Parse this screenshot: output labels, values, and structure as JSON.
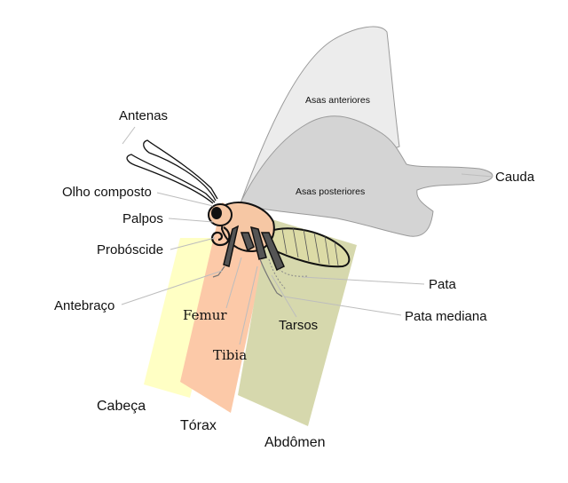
{
  "labels": {
    "antenas": "Antenas",
    "olho_composto": "Olho composto",
    "palpos": "Palpos",
    "proboscide": "Probóscide",
    "antebraco": "Antebraço",
    "femur": "Femur",
    "tibia": "Tibia",
    "tarsos": "Tarsos",
    "pata": "Pata",
    "pata_mediana": "Pata mediana",
    "caudа_placeholder": null,
    "cauda": "Cauda",
    "asas_anteriores": "Asas anteriores",
    "asas_posteriores": "Asas posteriores"
  },
  "regions": {
    "cabeca": "Cabeça",
    "torax": "Tórax",
    "abdomen": "Abdômen"
  },
  "colors": {
    "cabeca_band": "#ffffc4",
    "torax_band": "#fcc9a8",
    "abdomen_band": "#d6d8ad",
    "wing_front": "#ececec",
    "wing_back": "#d4d4d4",
    "body_fill": "#f6c7a4",
    "abdomen_fill": "#dcdba6",
    "leg_fill": "#555555",
    "leader_line": "#bdbdbd"
  }
}
